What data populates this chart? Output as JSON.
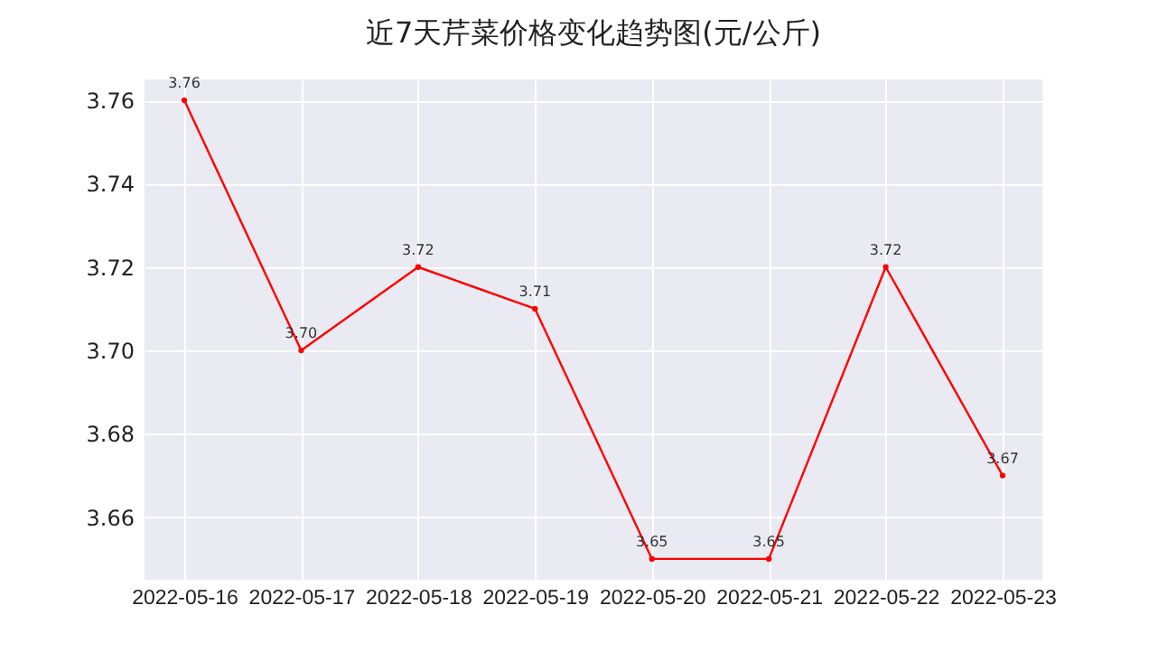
{
  "chart_data": {
    "type": "line",
    "title": "近7天芹菜价格变化趋势图(元/公斤)",
    "categories": [
      "2022-05-16",
      "2022-05-17",
      "2022-05-18",
      "2022-05-19",
      "2022-05-20",
      "2022-05-21",
      "2022-05-22",
      "2022-05-23"
    ],
    "series": [
      {
        "color": "#ff0000",
        "values": [
          3.76,
          3.7,
          3.72,
          3.71,
          3.65,
          3.65,
          3.72,
          3.67
        ],
        "value_labels": [
          "3.76",
          "3.70",
          "3.72",
          "3.71",
          "3.65",
          "3.65",
          "3.72",
          "3.67"
        ]
      }
    ],
    "ylim": [
      3.645,
      3.765
    ],
    "yticks": [
      {
        "value": 3.66,
        "label": "3.66"
      },
      {
        "value": 3.68,
        "label": "3.68"
      },
      {
        "value": 3.7,
        "label": "3.70"
      },
      {
        "value": 3.72,
        "label": "3.72"
      },
      {
        "value": 3.74,
        "label": "3.74"
      },
      {
        "value": 3.76,
        "label": "3.76"
      }
    ],
    "grid": true,
    "marker": "circle",
    "line_style": "solid"
  }
}
